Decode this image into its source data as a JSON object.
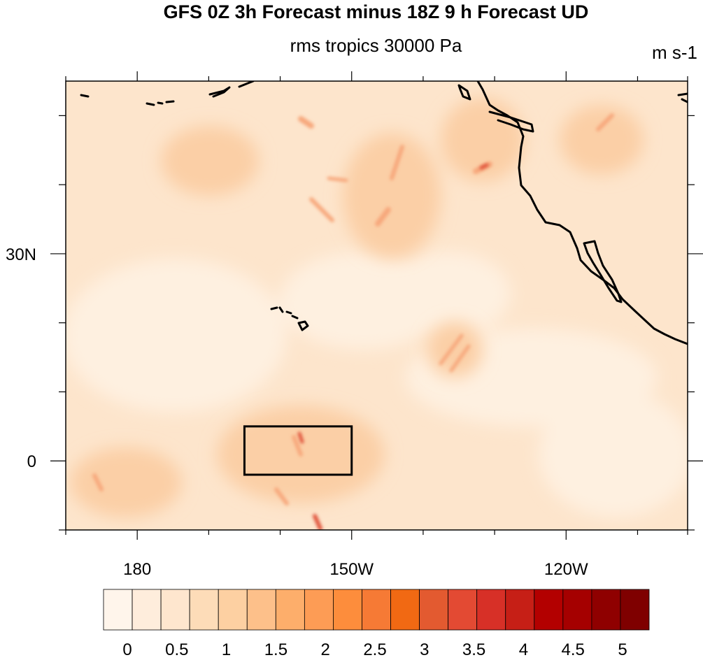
{
  "title": "GFS 0Z 3h Forecast minus 18Z 9 h Forecast UD",
  "subtitle": "rms tropics 30000 Pa",
  "units": "m s-1",
  "map": {
    "projection": "cylindrical equidistant",
    "region": "central & eastern North Pacific",
    "lon_range": [
      170,
      -103
    ],
    "lat_range": [
      -10,
      55
    ],
    "coastlines": true,
    "features": [
      "Hawaiian Islands",
      "Baja California",
      "US West Coast"
    ],
    "box": {
      "lon_range": [
        -165,
        -150
      ],
      "lat_range": [
        -2,
        5
      ]
    },
    "lon_tick_labels": [
      {
        "lon": 180,
        "label": "180"
      },
      {
        "lon": -150,
        "label": "150W"
      },
      {
        "lon": -120,
        "label": "120W"
      }
    ],
    "lat_tick_labels": [
      {
        "lat": 30,
        "label": "30N"
      },
      {
        "lat": 0,
        "label": "0"
      }
    ],
    "lon_minor_ticks": [
      170,
      180,
      -170,
      -160,
      -150,
      -140,
      -130,
      -120,
      -110,
      -103
    ],
    "lat_minor_ticks": [
      -10,
      0,
      10,
      20,
      30,
      40,
      50
    ]
  },
  "colorbar": {
    "labels": [
      "0",
      "0.5",
      "1",
      "1.5",
      "2",
      "2.5",
      "3",
      "3.5",
      "4",
      "4.5",
      "5"
    ],
    "colors": [
      "#fff5eb",
      "#feeddc",
      "#fee6ce",
      "#fddcb8",
      "#fdd0a2",
      "#fdc08a",
      "#fdae6b",
      "#fd9c55",
      "#fd8d3c",
      "#f67a35",
      "#f16913",
      "#e35a30",
      "#e34a33",
      "#d73027",
      "#c61f16",
      "#b30000",
      "#a50000",
      "#8f0000",
      "#7f0000"
    ],
    "field_colors": {
      "background": "#fde5cc",
      "light": "#fef0e0",
      "medium": "#fbcfa6",
      "strong": "#f7a77c",
      "peak": "#e0523a"
    }
  }
}
